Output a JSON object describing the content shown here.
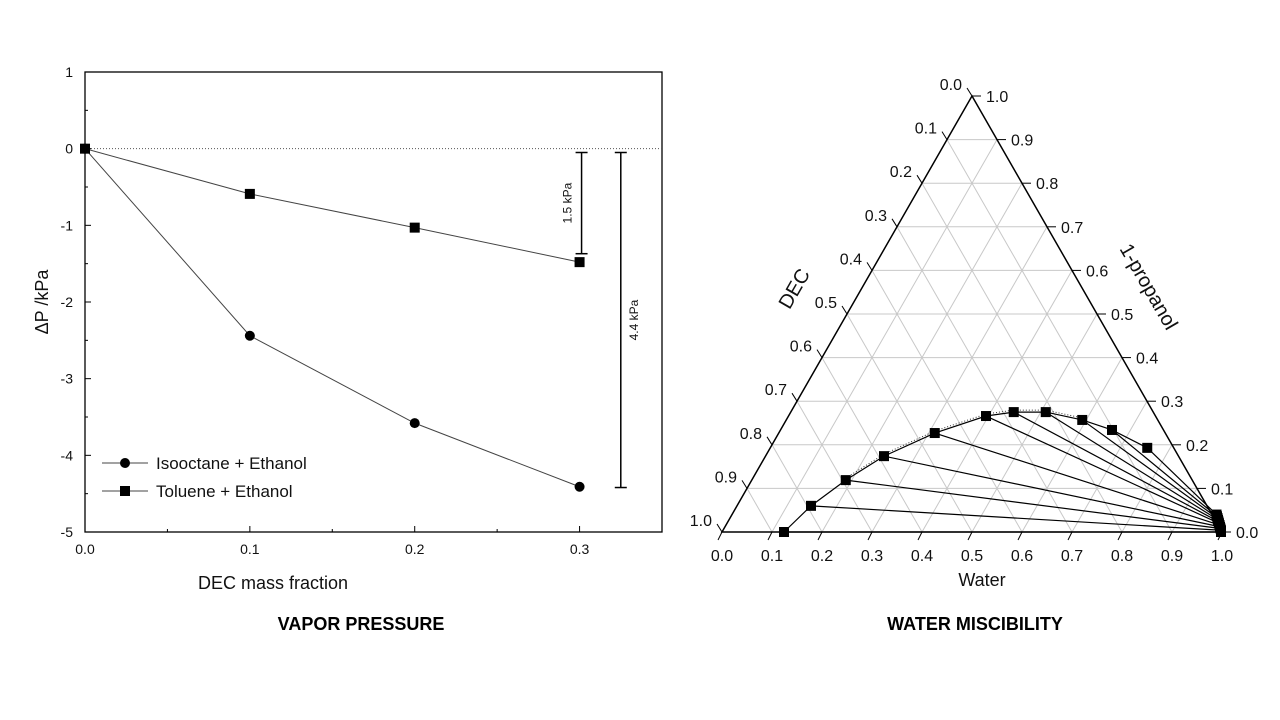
{
  "captions": {
    "left": "VAPOR PRESSURE",
    "right": "WATER MISCIBILITY"
  },
  "chart_data": [
    {
      "type": "line",
      "title": "VAPOR PRESSURE",
      "xlabel": "DEC mass fraction",
      "ylabel": "ΔP /kPa",
      "xlim": [
        0,
        0.35
      ],
      "ylim": [
        -5,
        1
      ],
      "xticks": [
        "0.0",
        "0.1",
        "0.2",
        "0.3"
      ],
      "xtick_values": [
        0,
        0.1,
        0.2,
        0.3
      ],
      "yticks": [
        "1",
        "0",
        "-1",
        "-2",
        "-3",
        "-4",
        "-5"
      ],
      "ytick_values": [
        1,
        0,
        -1,
        -2,
        -3,
        -4,
        -5
      ],
      "legend_position": "bottom-left",
      "series": [
        {
          "name": "Isooctane + Ethanol",
          "marker": "circle",
          "x": [
            0,
            0.1,
            0.2,
            0.3
          ],
          "y": [
            0,
            -2.44,
            -3.58,
            -4.41
          ]
        },
        {
          "name": "Toluene + Ethanol",
          "marker": "square",
          "x": [
            0,
            0.1,
            0.2,
            0.3
          ],
          "y": [
            0,
            -0.59,
            -1.03,
            -1.48
          ]
        }
      ],
      "annotations": [
        {
          "text": "1.5 kPa",
          "x": 0.3,
          "y_from": -0.05,
          "y_to": -1.37
        },
        {
          "text": "4.4 kPa",
          "x": 0.325,
          "y_from": -0.05,
          "y_to": -4.42
        }
      ]
    },
    {
      "type": "scatter",
      "subtype": "ternary",
      "title": "WATER MISCIBILITY",
      "axes": {
        "bottom": "Water",
        "left": "DEC",
        "right": "1-propanol"
      },
      "ticks": [
        "0.0",
        "0.1",
        "0.2",
        "0.3",
        "0.4",
        "0.5",
        "0.6",
        "0.7",
        "0.8",
        "0.9",
        "1.0"
      ],
      "binodal_organic_phase": [
        {
          "water": 0.124,
          "propanol": 0.0
        },
        {
          "water": 0.148,
          "propanol": 0.06
        },
        {
          "water": 0.188,
          "propanol": 0.119
        },
        {
          "water": 0.237,
          "propanol": 0.174
        },
        {
          "water": 0.312,
          "propanol": 0.227
        },
        {
          "water": 0.395,
          "propanol": 0.266
        },
        {
          "water": 0.446,
          "propanol": 0.275
        },
        {
          "water": 0.51,
          "propanol": 0.275
        },
        {
          "water": 0.592,
          "propanol": 0.257
        },
        {
          "water": 0.663,
          "propanol": 0.234
        },
        {
          "water": 0.754,
          "propanol": 0.193
        }
      ],
      "water_rich_phase": [
        {
          "water": 0.998,
          "propanol": 0.0
        },
        {
          "water": 0.996,
          "propanol": 0.004
        },
        {
          "water": 0.993,
          "propanol": 0.008
        },
        {
          "water": 0.99,
          "propanol": 0.012
        },
        {
          "water": 0.987,
          "propanol": 0.016
        },
        {
          "water": 0.984,
          "propanol": 0.02
        },
        {
          "water": 0.981,
          "propanol": 0.024
        },
        {
          "water": 0.978,
          "propanol": 0.028
        },
        {
          "water": 0.975,
          "propanol": 0.032
        },
        {
          "water": 0.972,
          "propanol": 0.036
        },
        {
          "water": 0.969,
          "propanol": 0.04
        }
      ]
    }
  ]
}
